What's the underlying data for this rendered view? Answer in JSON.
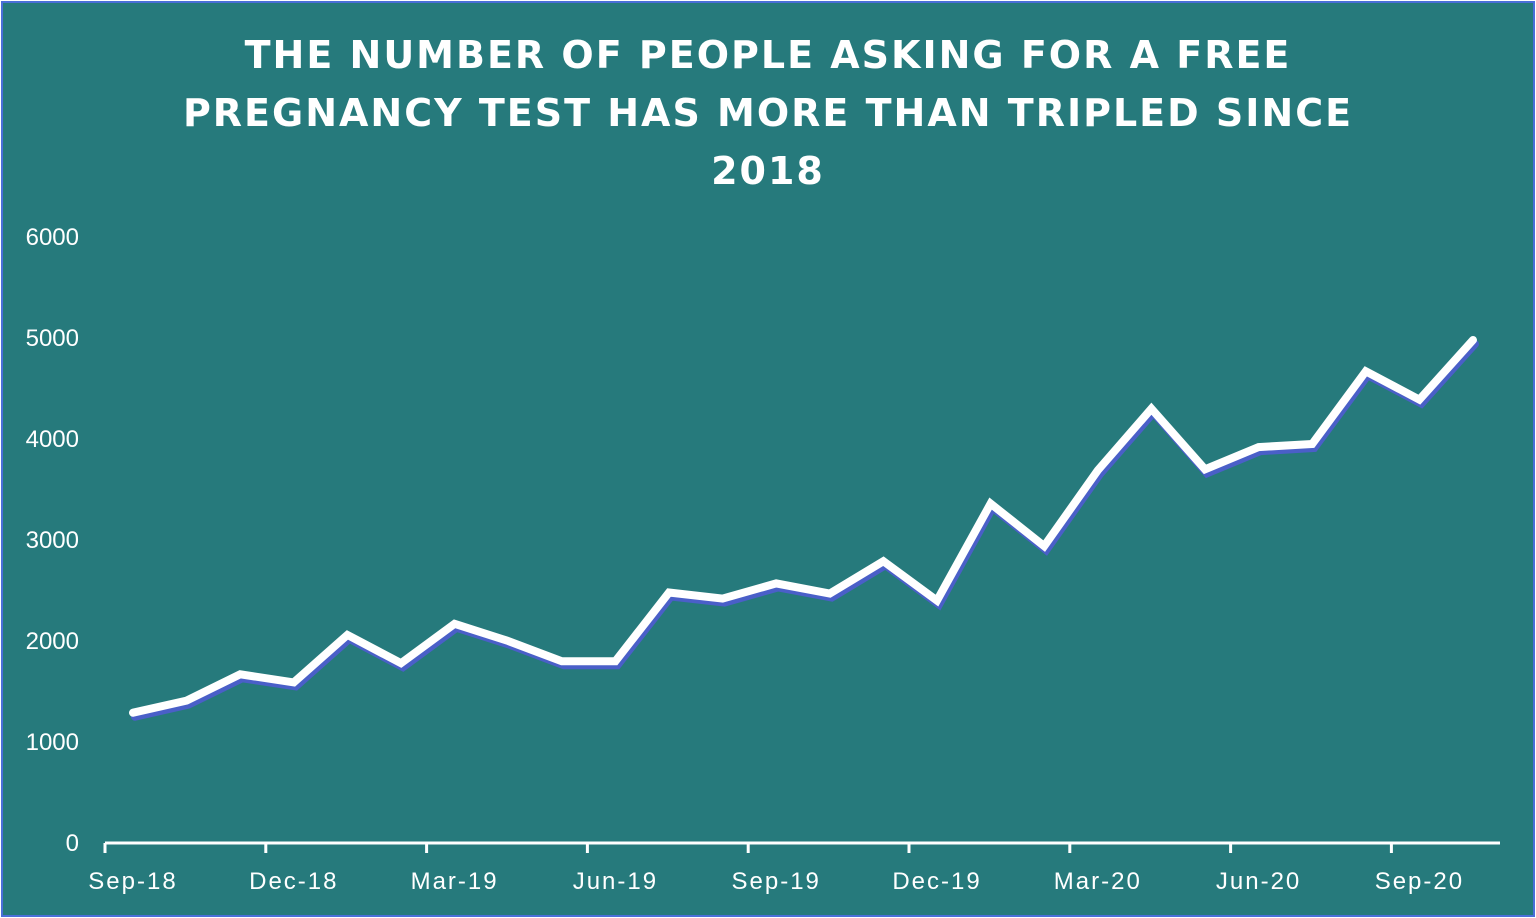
{
  "chart_data": {
    "type": "line",
    "title_lines": [
      "THE NUMBER OF PEOPLE ASKING FOR A FREE",
      "PREGNANCY TEST HAS MORE THAN TRIPLED SINCE",
      "2018"
    ],
    "xlabel": "",
    "ylabel": "",
    "ylim": [
      0,
      6000
    ],
    "yticks": [
      0,
      1000,
      2000,
      3000,
      4000,
      5000,
      6000
    ],
    "xticks": [
      "Sep-18",
      "Dec-18",
      "Mar-19",
      "Jun-19",
      "Sep-19",
      "Dec-19",
      "Mar-20",
      "Jun-20",
      "Sep-20"
    ],
    "grid": false,
    "legend": "none",
    "line_color": "#ffffff",
    "shadow_color": "#4a5fc8",
    "background_color": "#267a7c",
    "series": [
      {
        "x": [
          "Sep-18",
          "Oct-18",
          "Nov-18",
          "Dec-18",
          "Jan-19",
          "Feb-19",
          "Mar-19",
          "Apr-19",
          "May-19",
          "Jun-19",
          "Jul-19",
          "Aug-19",
          "Sep-19",
          "Oct-19",
          "Nov-19",
          "Dec-19",
          "Jan-20",
          "Feb-20",
          "Mar-20",
          "Apr-20",
          "May-20",
          "Jun-20",
          "Jul-20",
          "Aug-20",
          "Sep-20",
          "Oct-20"
        ],
        "values": [
          1290,
          1410,
          1670,
          1590,
          2060,
          1780,
          2170,
          2000,
          1800,
          1800,
          2480,
          2420,
          2570,
          2470,
          2790,
          2400,
          3360,
          2940,
          3690,
          4300,
          3700,
          3920,
          3950,
          4670,
          4390,
          4980
        ]
      }
    ]
  }
}
